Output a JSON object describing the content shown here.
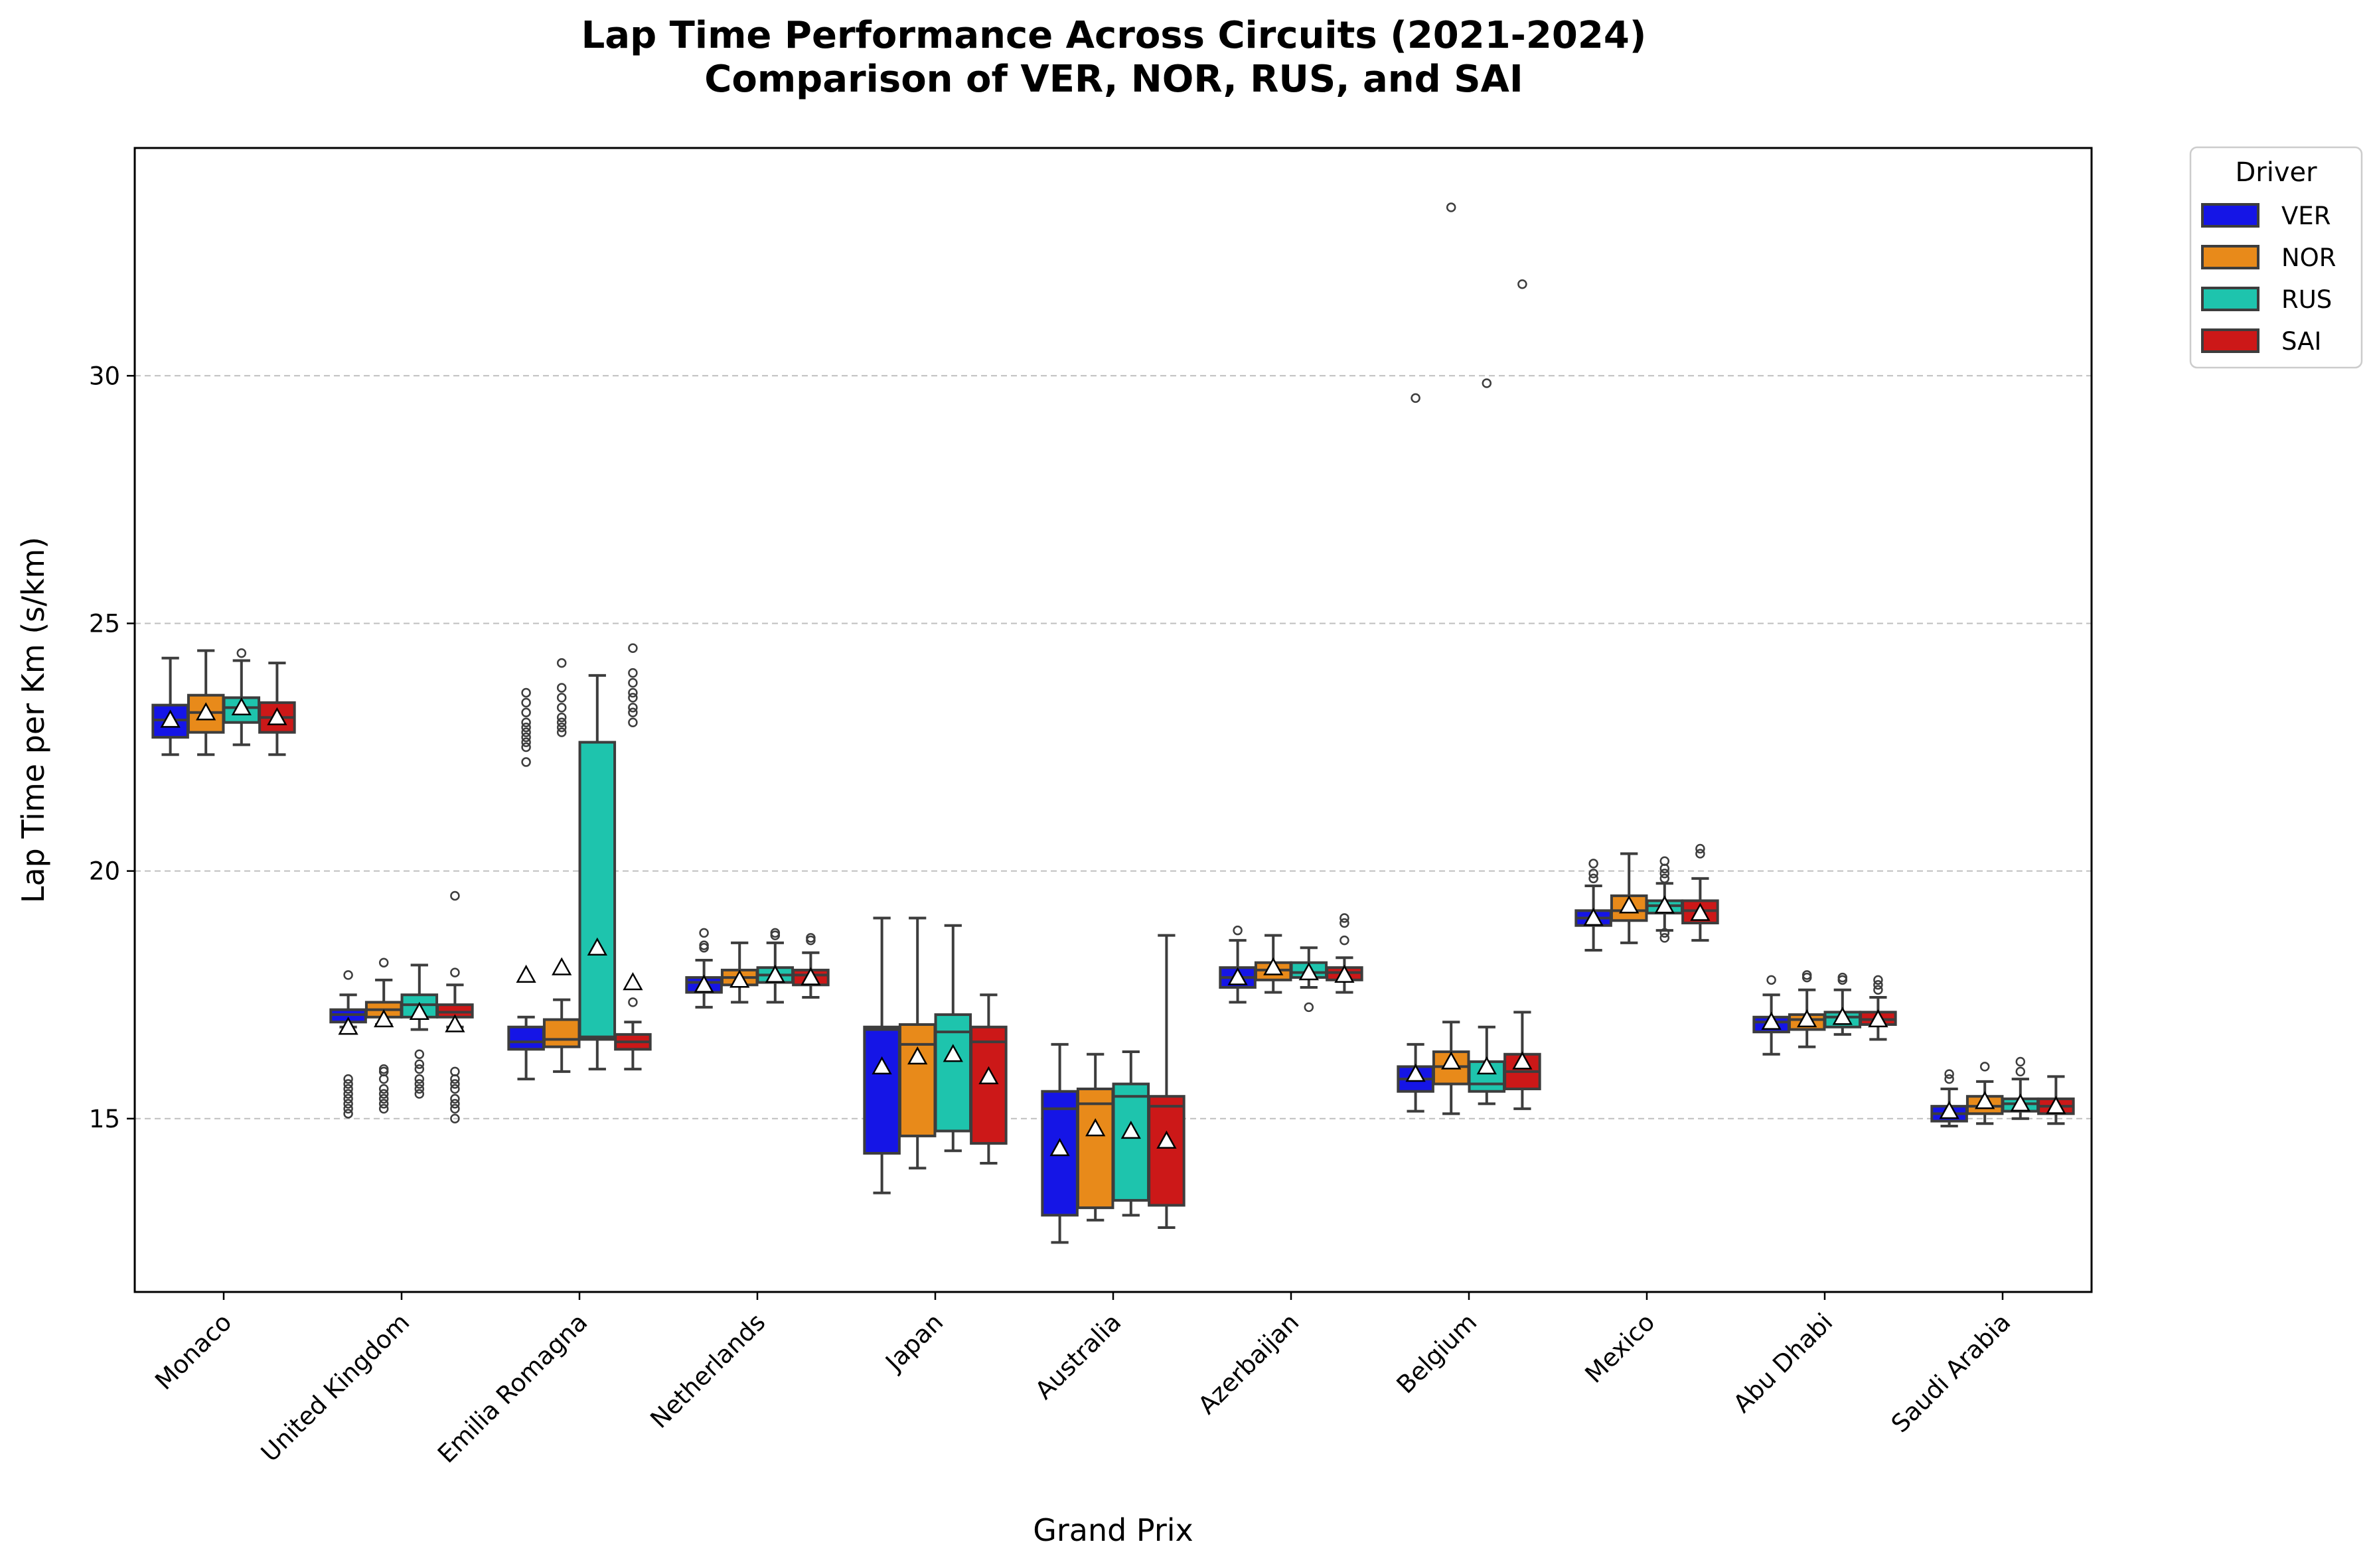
{
  "chart_data": {
    "type": "box",
    "title": "Lap Time Performance Across Circuits (2021-2024)",
    "subtitle": "Comparison of VER, NOR, RUS, and SAI",
    "xlabel": "Grand Prix",
    "ylabel": "Lap Time per Km (s/km)",
    "ylim": [
      11.5,
      34.6
    ],
    "yticks": [
      15,
      20,
      25,
      30
    ],
    "grid": "y-dashed",
    "legend": {
      "title": "Driver",
      "placement": "outside-top-right"
    },
    "colors": {
      "VER": "#1515e6",
      "NOR": "#e88a1a",
      "RUS": "#1ec4ad",
      "SAI": "#cc1818"
    },
    "categories": [
      "Monaco",
      "United Kingdom",
      "Emilia Romagna",
      "Netherlands",
      "Japan",
      "Australia",
      "Azerbaijan",
      "Belgium",
      "Mexico",
      "Abu Dhabi",
      "Saudi Arabia"
    ],
    "series": [
      {
        "name": "VER",
        "boxes": [
          {
            "whislo": 22.35,
            "q1": 22.7,
            "med": 23.05,
            "q3": 23.35,
            "whishi": 24.3,
            "mean": 23.05,
            "fliers": []
          },
          {
            "whislo": 16.85,
            "q1": 16.95,
            "med": 17.1,
            "q3": 17.2,
            "whishi": 17.5,
            "mean": 16.85,
            "fliers": [
              15.1,
              15.2,
              15.3,
              15.4,
              15.5,
              15.6,
              15.7,
              15.8,
              17.9
            ]
          },
          {
            "whislo": 15.8,
            "q1": 16.4,
            "med": 16.55,
            "q3": 16.85,
            "whishi": 17.05,
            "mean": 17.9,
            "fliers": [
              22.2,
              22.5,
              22.6,
              22.7,
              22.8,
              22.9,
              23.0,
              23.2,
              23.4,
              23.6
            ]
          },
          {
            "whislo": 17.25,
            "q1": 17.55,
            "med": 17.75,
            "q3": 17.85,
            "whishi": 18.2,
            "mean": 17.7,
            "fliers": [
              18.45,
              18.5,
              18.75
            ]
          },
          {
            "whislo": 13.5,
            "q1": 14.3,
            "med": 16.8,
            "q3": 16.85,
            "whishi": 19.05,
            "mean": 16.05,
            "fliers": []
          },
          {
            "whislo": 12.5,
            "q1": 13.05,
            "med": 15.2,
            "q3": 15.55,
            "whishi": 16.5,
            "mean": 14.4,
            "fliers": []
          },
          {
            "whislo": 17.35,
            "q1": 17.65,
            "med": 17.85,
            "q3": 18.05,
            "whishi": 18.6,
            "mean": 17.85,
            "fliers": [
              18.8
            ]
          },
          {
            "whislo": 15.15,
            "q1": 15.55,
            "med": 15.8,
            "q3": 16.05,
            "whishi": 16.5,
            "mean": 15.9,
            "fliers": [
              29.55
            ]
          },
          {
            "whislo": 18.4,
            "q1": 18.9,
            "med": 19.05,
            "q3": 19.2,
            "whishi": 19.7,
            "mean": 19.05,
            "fliers": [
              19.85,
              19.95,
              20.15
            ]
          },
          {
            "whislo": 16.3,
            "q1": 16.75,
            "med": 16.95,
            "q3": 17.05,
            "whishi": 17.5,
            "mean": 16.95,
            "fliers": [
              17.8
            ]
          },
          {
            "whislo": 14.85,
            "q1": 14.95,
            "med": 15.1,
            "q3": 15.25,
            "whishi": 15.6,
            "mean": 15.15,
            "fliers": [
              15.8,
              15.9
            ]
          }
        ]
      },
      {
        "name": "NOR",
        "boxes": [
          {
            "whislo": 22.35,
            "q1": 22.8,
            "med": 23.2,
            "q3": 23.55,
            "whishi": 24.45,
            "mean": 23.2,
            "fliers": []
          },
          {
            "whislo": 16.9,
            "q1": 17.05,
            "med": 17.2,
            "q3": 17.35,
            "whishi": 17.8,
            "mean": 17.0,
            "fliers": [
              15.2,
              15.3,
              15.4,
              15.5,
              15.6,
              15.8,
              15.95,
              16.0,
              18.15
            ]
          },
          {
            "whislo": 15.95,
            "q1": 16.45,
            "med": 16.6,
            "q3": 17.0,
            "whishi": 17.4,
            "mean": 18.05,
            "fliers": [
              22.8,
              22.9,
              23.0,
              23.1,
              23.3,
              23.5,
              23.7,
              24.2
            ]
          },
          {
            "whislo": 17.35,
            "q1": 17.7,
            "med": 17.85,
            "q3": 18.0,
            "whishi": 18.55,
            "mean": 17.8,
            "fliers": []
          },
          {
            "whislo": 14.0,
            "q1": 14.65,
            "med": 16.5,
            "q3": 16.9,
            "whishi": 19.05,
            "mean": 16.25,
            "fliers": []
          },
          {
            "whislo": 12.95,
            "q1": 13.2,
            "med": 15.3,
            "q3": 15.6,
            "whishi": 16.3,
            "mean": 14.8,
            "fliers": []
          },
          {
            "whislo": 17.55,
            "q1": 17.8,
            "med": 18.0,
            "q3": 18.15,
            "whishi": 18.7,
            "mean": 18.05,
            "fliers": []
          },
          {
            "whislo": 15.1,
            "q1": 15.7,
            "med": 16.05,
            "q3": 16.35,
            "whishi": 16.95,
            "mean": 16.15,
            "fliers": [
              33.4
            ]
          },
          {
            "whislo": 18.55,
            "q1": 19.0,
            "med": 19.2,
            "q3": 19.5,
            "whishi": 20.35,
            "mean": 19.3,
            "fliers": []
          },
          {
            "whislo": 16.45,
            "q1": 16.8,
            "med": 17.0,
            "q3": 17.1,
            "whishi": 17.6,
            "mean": 17.0,
            "fliers": [
              17.85,
              17.9
            ]
          },
          {
            "whislo": 14.9,
            "q1": 15.1,
            "med": 15.25,
            "q3": 15.45,
            "whishi": 15.75,
            "mean": 15.35,
            "fliers": [
              16.05
            ]
          }
        ]
      },
      {
        "name": "RUS",
        "boxes": [
          {
            "whislo": 22.55,
            "q1": 23.0,
            "med": 23.3,
            "q3": 23.5,
            "whishi": 24.25,
            "mean": 23.3,
            "fliers": [
              24.4
            ]
          },
          {
            "whislo": 16.8,
            "q1": 17.05,
            "med": 17.3,
            "q3": 17.5,
            "whishi": 18.1,
            "mean": 17.15,
            "fliers": [
              15.5,
              15.6,
              15.7,
              15.8,
              16.0,
              16.1,
              16.3
            ]
          },
          {
            "whislo": 16.0,
            "q1": 16.6,
            "med": 16.65,
            "q3": 22.6,
            "whishi": 23.95,
            "mean": 18.45,
            "fliers": []
          },
          {
            "whislo": 17.35,
            "q1": 17.75,
            "med": 17.9,
            "q3": 18.05,
            "whishi": 18.55,
            "mean": 17.9,
            "fliers": [
              18.7,
              18.75
            ]
          },
          {
            "whislo": 14.35,
            "q1": 14.75,
            "med": 16.75,
            "q3": 17.1,
            "whishi": 18.9,
            "mean": 16.3,
            "fliers": []
          },
          {
            "whislo": 13.05,
            "q1": 13.35,
            "med": 15.45,
            "q3": 15.7,
            "whishi": 16.35,
            "mean": 14.75,
            "fliers": []
          },
          {
            "whislo": 17.65,
            "q1": 17.85,
            "med": 17.95,
            "q3": 18.15,
            "whishi": 18.45,
            "mean": 17.95,
            "fliers": [
              17.25
            ]
          },
          {
            "whislo": 15.3,
            "q1": 15.55,
            "med": 15.7,
            "q3": 16.15,
            "whishi": 16.85,
            "mean": 16.05,
            "fliers": [
              29.85
            ]
          },
          {
            "whislo": 18.8,
            "q1": 19.15,
            "med": 19.3,
            "q3": 19.4,
            "whishi": 19.75,
            "mean": 19.3,
            "fliers": [
              18.65,
              18.75,
              19.85,
              19.95,
              20.05,
              20.2
            ]
          },
          {
            "whislo": 16.7,
            "q1": 16.85,
            "med": 17.05,
            "q3": 17.15,
            "whishi": 17.6,
            "mean": 17.05,
            "fliers": [
              17.8,
              17.85
            ]
          },
          {
            "whislo": 15.0,
            "q1": 15.15,
            "med": 15.3,
            "q3": 15.4,
            "whishi": 15.8,
            "mean": 15.3,
            "fliers": [
              15.95,
              16.15
            ]
          }
        ]
      },
      {
        "name": "SAI",
        "boxes": [
          {
            "whislo": 22.35,
            "q1": 22.8,
            "med": 23.1,
            "q3": 23.4,
            "whishi": 24.2,
            "mean": 23.1,
            "fliers": []
          },
          {
            "whislo": 16.85,
            "q1": 17.05,
            "med": 17.15,
            "q3": 17.3,
            "whishi": 17.7,
            "mean": 16.9,
            "fliers": [
              15.0,
              15.2,
              15.3,
              15.4,
              15.6,
              15.7,
              15.8,
              15.95,
              17.95,
              19.5
            ]
          },
          {
            "whislo": 16.0,
            "q1": 16.4,
            "med": 16.55,
            "q3": 16.7,
            "whishi": 16.95,
            "mean": 17.75,
            "fliers": [
              17.35,
              23.0,
              23.2,
              23.3,
              23.5,
              23.6,
              23.8,
              24.0,
              24.5
            ]
          },
          {
            "whislo": 17.45,
            "q1": 17.7,
            "med": 17.9,
            "q3": 18.0,
            "whishi": 18.35,
            "mean": 17.85,
            "fliers": [
              18.6,
              18.65
            ]
          },
          {
            "whislo": 14.1,
            "q1": 14.5,
            "med": 16.55,
            "q3": 16.85,
            "whishi": 17.5,
            "mean": 15.85,
            "fliers": []
          },
          {
            "whislo": 12.8,
            "q1": 13.25,
            "med": 15.25,
            "q3": 15.45,
            "whishi": 18.7,
            "mean": 14.55,
            "fliers": []
          },
          {
            "whislo": 17.55,
            "q1": 17.8,
            "med": 17.95,
            "q3": 18.05,
            "whishi": 18.25,
            "mean": 17.9,
            "fliers": [
              18.6,
              18.95,
              19.05
            ]
          },
          {
            "whislo": 15.2,
            "q1": 15.6,
            "med": 15.95,
            "q3": 16.3,
            "whishi": 17.15,
            "mean": 16.15,
            "fliers": [
              31.85
            ]
          },
          {
            "whislo": 18.6,
            "q1": 18.95,
            "med": 19.2,
            "q3": 19.4,
            "whishi": 19.85,
            "mean": 19.15,
            "fliers": [
              20.35,
              20.45
            ]
          },
          {
            "whislo": 16.6,
            "q1": 16.9,
            "med": 17.0,
            "q3": 17.15,
            "whishi": 17.45,
            "mean": 17.0,
            "fliers": [
              17.6,
              17.7,
              17.8
            ]
          },
          {
            "whislo": 14.9,
            "q1": 15.1,
            "med": 15.25,
            "q3": 15.4,
            "whishi": 15.85,
            "mean": 15.25,
            "fliers": []
          }
        ]
      }
    ]
  }
}
